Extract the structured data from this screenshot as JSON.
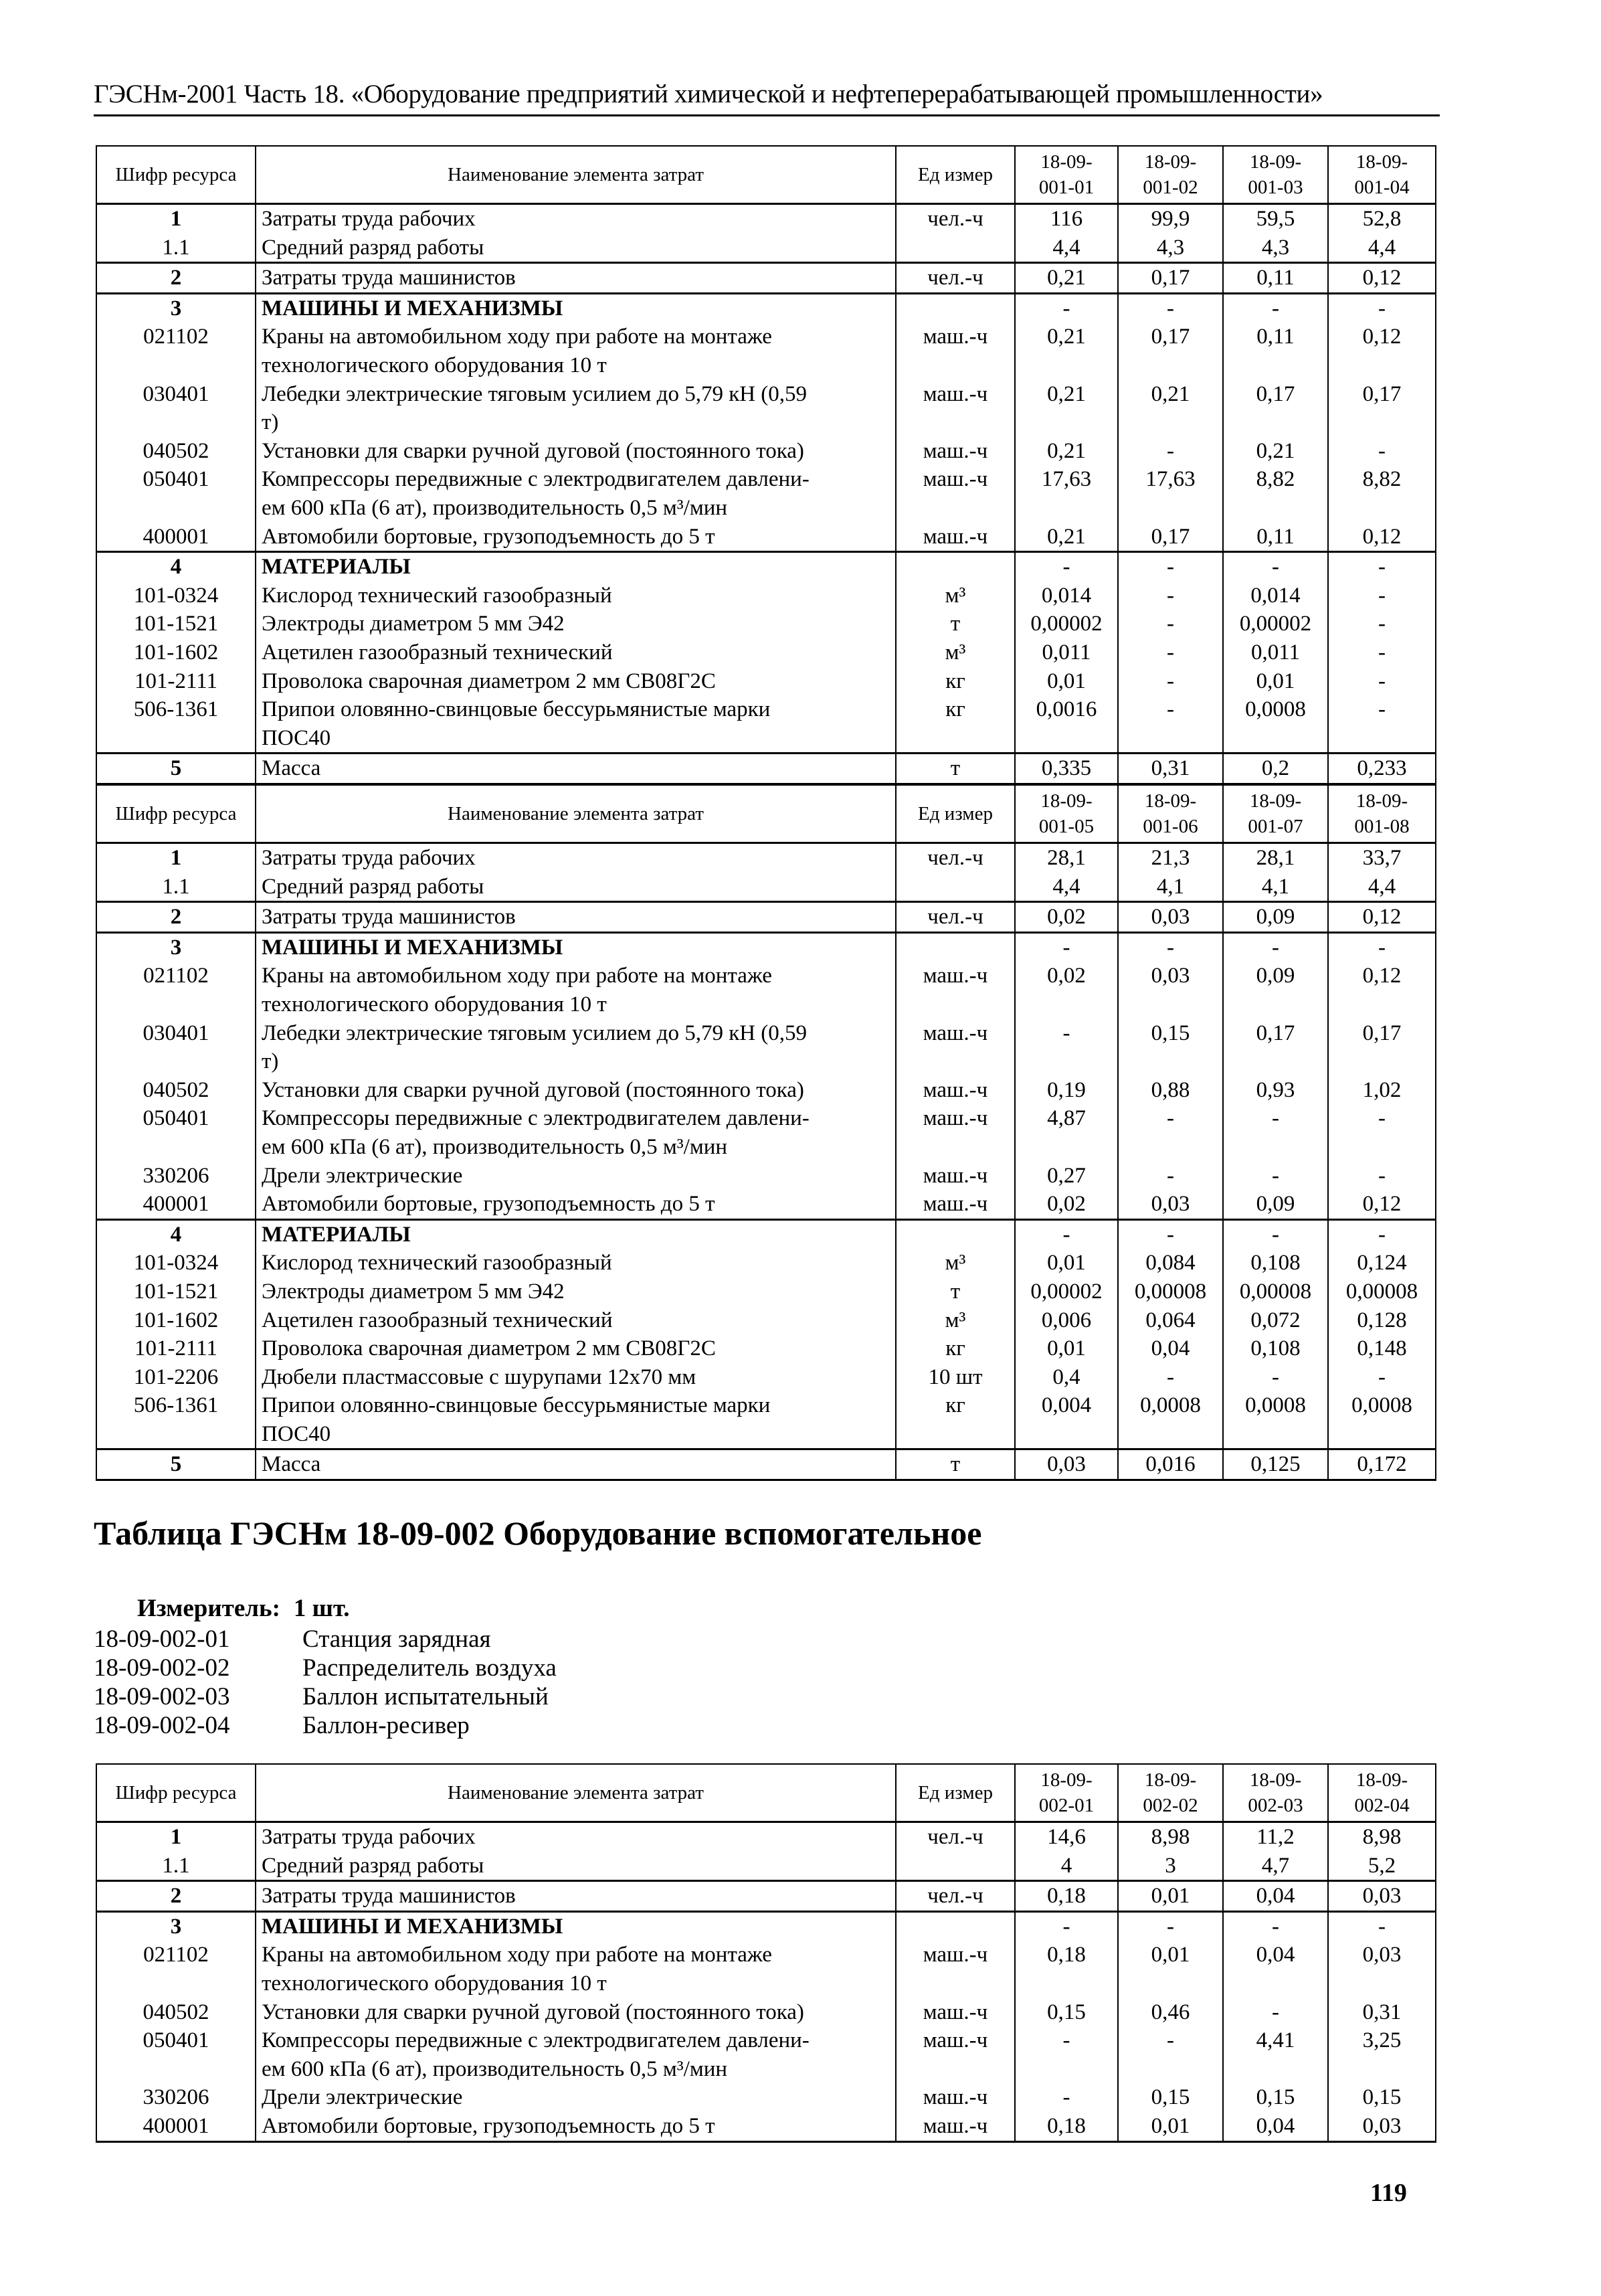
{
  "running_header": "ГЭСНм-2001 Часть 18. «Оборудование предприятий химической и нефтеперерабатывающей промышленности»",
  "tables": [
    {
      "header": {
        "code": "Шифр ресурса",
        "name": "Наименование элемента затрат",
        "unit": "Ед измер",
        "cols": [
          "18-09-\n001-01",
          "18-09-\n001-02",
          "18-09-\n001-03",
          "18-09-\n001-04"
        ]
      },
      "rows": [
        {
          "code": "1",
          "name": "Затраты труда рабочих",
          "unit": "чел.-ч",
          "values": [
            "116",
            "99,9",
            "59,5",
            "52,8"
          ],
          "bold": true,
          "group": true
        },
        {
          "code": "1.1",
          "name": "Средний разряд работы",
          "unit": "",
          "values": [
            "4,4",
            "4,3",
            "4,3",
            "4,4"
          ]
        },
        {
          "code": "2",
          "name": "Затраты труда машинистов",
          "unit": "чел.-ч",
          "values": [
            "0,21",
            "0,17",
            "0,11",
            "0,12"
          ],
          "bold": true,
          "group": true
        },
        {
          "code": "3",
          "name": "МАШИНЫ И МЕХАНИЗМЫ",
          "unit": "",
          "values": [
            "-",
            "-",
            "-",
            "-"
          ],
          "bold": true,
          "boldname": true,
          "group": true
        },
        {
          "code": "021102",
          "name": "Краны на автомобильном ходу при работе на монтаже\nтехнологического оборудования 10 т",
          "unit": "маш.-ч",
          "values": [
            "0,21",
            "0,17",
            "0,11",
            "0,12"
          ]
        },
        {
          "code": "030401",
          "name": "Лебедки электрические тяговым усилием до 5,79 кН (0,59\nт)",
          "unit": "маш.-ч",
          "values": [
            "0,21",
            "0,21",
            "0,17",
            "0,17"
          ]
        },
        {
          "code": "040502",
          "name": "Установки для сварки ручной дуговой (постоянного тока)",
          "unit": "маш.-ч",
          "values": [
            "0,21",
            "-",
            "0,21",
            "-"
          ]
        },
        {
          "code": "050401",
          "name": "Компрессоры передвижные с электродвигателем давлени-\nем 600 кПа (6 ат), производительность 0,5 м³/мин",
          "unit": "маш.-ч",
          "values": [
            "17,63",
            "17,63",
            "8,82",
            "8,82"
          ]
        },
        {
          "code": "400001",
          "name": "Автомобили бортовые, грузоподъемность до 5 т",
          "unit": "маш.-ч",
          "values": [
            "0,21",
            "0,17",
            "0,11",
            "0,12"
          ]
        },
        {
          "code": "4",
          "name": "МАТЕРИАЛЫ",
          "unit": "",
          "values": [
            "-",
            "-",
            "-",
            "-"
          ],
          "bold": true,
          "boldname": true,
          "group": true
        },
        {
          "code": "101-0324",
          "name": "Кислород технический газообразный",
          "unit": "м³",
          "values": [
            "0,014",
            "-",
            "0,014",
            "-"
          ]
        },
        {
          "code": "101-1521",
          "name": "Электроды диаметром 5 мм Э42",
          "unit": "т",
          "values": [
            "0,00002",
            "-",
            "0,00002",
            "-"
          ]
        },
        {
          "code": "101-1602",
          "name": "Ацетилен газообразный технический",
          "unit": "м³",
          "values": [
            "0,011",
            "-",
            "0,011",
            "-"
          ]
        },
        {
          "code": "101-2111",
          "name": "Проволока сварочная диаметром 2 мм СВ08Г2С",
          "unit": "кг",
          "values": [
            "0,01",
            "-",
            "0,01",
            "-"
          ]
        },
        {
          "code": "506-1361",
          "name": "Припои оловянно-свинцовые бессурьмянистые марки\nПОС40",
          "unit": "кг",
          "values": [
            "0,0016",
            "-",
            "0,0008",
            "-"
          ]
        },
        {
          "code": "5",
          "name": "Масса",
          "unit": "т",
          "values": [
            "0,335",
            "0,31",
            "0,2",
            "0,233"
          ],
          "bold": true,
          "group": true
        }
      ]
    },
    {
      "header": {
        "code": "Шифр ресурса",
        "name": "Наименование элемента затрат",
        "unit": "Ед измер",
        "cols": [
          "18-09-\n001-05",
          "18-09-\n001-06",
          "18-09-\n001-07",
          "18-09-\n001-08"
        ]
      },
      "rows": [
        {
          "code": "1",
          "name": "Затраты труда рабочих",
          "unit": "чел.-ч",
          "values": [
            "28,1",
            "21,3",
            "28,1",
            "33,7"
          ],
          "bold": true,
          "group": true
        },
        {
          "code": "1.1",
          "name": "Средний разряд работы",
          "unit": "",
          "values": [
            "4,4",
            "4,1",
            "4,1",
            "4,4"
          ]
        },
        {
          "code": "2",
          "name": "Затраты труда машинистов",
          "unit": "чел.-ч",
          "values": [
            "0,02",
            "0,03",
            "0,09",
            "0,12"
          ],
          "bold": true,
          "group": true
        },
        {
          "code": "3",
          "name": "МАШИНЫ И МЕХАНИЗМЫ",
          "unit": "",
          "values": [
            "-",
            "-",
            "-",
            "-"
          ],
          "bold": true,
          "boldname": true,
          "group": true
        },
        {
          "code": "021102",
          "name": "Краны на автомобильном ходу при работе на монтаже\nтехнологического оборудования 10 т",
          "unit": "маш.-ч",
          "values": [
            "0,02",
            "0,03",
            "0,09",
            "0,12"
          ]
        },
        {
          "code": "030401",
          "name": "Лебедки электрические тяговым усилием до 5,79 кН (0,59\nт)",
          "unit": "маш.-ч",
          "values": [
            "-",
            "0,15",
            "0,17",
            "0,17"
          ]
        },
        {
          "code": "040502",
          "name": "Установки для сварки ручной дуговой (постоянного тока)",
          "unit": "маш.-ч",
          "values": [
            "0,19",
            "0,88",
            "0,93",
            "1,02"
          ]
        },
        {
          "code": "050401",
          "name": "Компрессоры передвижные с электродвигателем давлени-\nем 600 кПа (6 ат), производительность 0,5 м³/мин",
          "unit": "маш.-ч",
          "values": [
            "4,87",
            "-",
            "-",
            "-"
          ]
        },
        {
          "code": "330206",
          "name": "Дрели электрические",
          "unit": "маш.-ч",
          "values": [
            "0,27",
            "-",
            "-",
            "-"
          ]
        },
        {
          "code": "400001",
          "name": "Автомобили бортовые, грузоподъемность до 5 т",
          "unit": "маш.-ч",
          "values": [
            "0,02",
            "0,03",
            "0,09",
            "0,12"
          ]
        },
        {
          "code": "4",
          "name": "МАТЕРИАЛЫ",
          "unit": "",
          "values": [
            "-",
            "-",
            "-",
            "-"
          ],
          "bold": true,
          "boldname": true,
          "group": true
        },
        {
          "code": "101-0324",
          "name": "Кислород технический газообразный",
          "unit": "м³",
          "values": [
            "0,01",
            "0,084",
            "0,108",
            "0,124"
          ]
        },
        {
          "code": "101-1521",
          "name": "Электроды диаметром 5 мм Э42",
          "unit": "т",
          "values": [
            "0,00002",
            "0,00008",
            "0,00008",
            "0,00008"
          ]
        },
        {
          "code": "101-1602",
          "name": "Ацетилен газообразный технический",
          "unit": "м³",
          "values": [
            "0,006",
            "0,064",
            "0,072",
            "0,128"
          ]
        },
        {
          "code": "101-2111",
          "name": "Проволока сварочная диаметром 2 мм СВ08Г2С",
          "unit": "кг",
          "values": [
            "0,01",
            "0,04",
            "0,108",
            "0,148"
          ]
        },
        {
          "code": "101-2206",
          "name": "Дюбели пластмассовые с шурупами 12х70 мм",
          "unit": "10 шт",
          "values": [
            "0,4",
            "-",
            "-",
            "-"
          ]
        },
        {
          "code": "506-1361",
          "name": "Припои оловянно-свинцовые бессурьмянистые марки\nПОС40",
          "unit": "кг",
          "values": [
            "0,004",
            "0,0008",
            "0,0008",
            "0,0008"
          ]
        },
        {
          "code": "5",
          "name": "Масса",
          "unit": "т",
          "values": [
            "0,03",
            "0,016",
            "0,125",
            "0,172"
          ],
          "bold": true,
          "group": true
        }
      ]
    },
    {
      "header": {
        "code": "Шифр ресурса",
        "name": "Наименование элемента затрат",
        "unit": "Ед измер",
        "cols": [
          "18-09-\n002-01",
          "18-09-\n002-02",
          "18-09-\n002-03",
          "18-09-\n002-04"
        ]
      },
      "rows": [
        {
          "code": "1",
          "name": "Затраты труда рабочих",
          "unit": "чел.-ч",
          "values": [
            "14,6",
            "8,98",
            "11,2",
            "8,98"
          ],
          "bold": true,
          "group": true
        },
        {
          "code": "1.1",
          "name": "Средний разряд работы",
          "unit": "",
          "values": [
            "4",
            "3",
            "4,7",
            "5,2"
          ]
        },
        {
          "code": "2",
          "name": "Затраты труда машинистов",
          "unit": "чел.-ч",
          "values": [
            "0,18",
            "0,01",
            "0,04",
            "0,03"
          ],
          "bold": true,
          "group": true
        },
        {
          "code": "3",
          "name": "МАШИНЫ И МЕХАНИЗМЫ",
          "unit": "",
          "values": [
            "-",
            "-",
            "-",
            "-"
          ],
          "bold": true,
          "boldname": true,
          "group": true
        },
        {
          "code": "021102",
          "name": "Краны на автомобильном ходу при работе на монтаже\nтехнологического оборудования 10 т",
          "unit": "маш.-ч",
          "values": [
            "0,18",
            "0,01",
            "0,04",
            "0,03"
          ]
        },
        {
          "code": "040502",
          "name": "Установки для сварки ручной дуговой (постоянного тока)",
          "unit": "маш.-ч",
          "values": [
            "0,15",
            "0,46",
            "-",
            "0,31"
          ]
        },
        {
          "code": "050401",
          "name": "Компрессоры передвижные с электродвигателем давлени-\nем 600 кПа (6 ат), производительность 0,5 м³/мин",
          "unit": "маш.-ч",
          "values": [
            "-",
            "-",
            "4,41",
            "3,25"
          ]
        },
        {
          "code": "330206",
          "name": "Дрели электрические",
          "unit": "маш.-ч",
          "values": [
            "-",
            "0,15",
            "0,15",
            "0,15"
          ]
        },
        {
          "code": "400001",
          "name": "Автомобили бортовые, грузоподъемность до 5 т",
          "unit": "маш.-ч",
          "values": [
            "0,18",
            "0,01",
            "0,04",
            "0,03"
          ]
        }
      ]
    }
  ],
  "section": {
    "title": "Таблица ГЭСНм 18-09-002 Оборудование вспомогательное",
    "meter_label": "Измеритель:",
    "meter_value": "1 шт.",
    "variants": [
      {
        "code": "18-09-002-01",
        "name": "Станция зарядная"
      },
      {
        "code": "18-09-002-02",
        "name": "Распределитель воздуха"
      },
      {
        "code": "18-09-002-03",
        "name": "Баллон испытательный"
      },
      {
        "code": "18-09-002-04",
        "name": "Баллон-ресивер"
      }
    ]
  },
  "page_number": "119"
}
